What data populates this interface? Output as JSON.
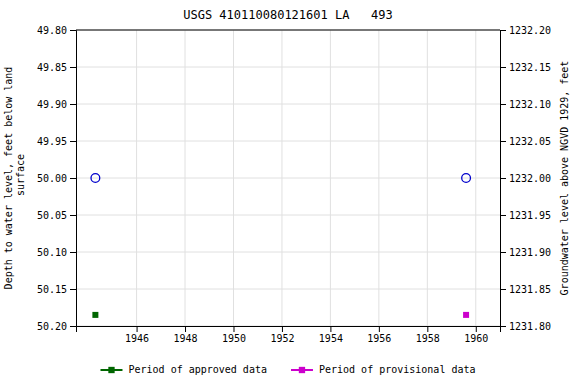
{
  "chart_data": {
    "type": "scatter",
    "title": "USGS 410110080121601 LA   493",
    "ylabel": "Depth to water level, feet below land\n surface",
    "y2label": "Groundwater level above NGVD 1929, feet",
    "xlim": [
      1943.5,
      1961.0
    ],
    "xticks": [
      1946,
      1948,
      1950,
      1952,
      1954,
      1956,
      1958,
      1960
    ],
    "ylim": [
      50.2,
      49.8
    ],
    "yticks": [
      {
        "value": 49.8,
        "label": "49.80"
      },
      {
        "value": 49.85,
        "label": "49.85"
      },
      {
        "value": 49.9,
        "label": "49.90"
      },
      {
        "value": 49.95,
        "label": "49.95"
      },
      {
        "value": 50.0,
        "label": "50.00"
      },
      {
        "value": 50.05,
        "label": "50.05"
      },
      {
        "value": 50.1,
        "label": "50.10"
      },
      {
        "value": 50.15,
        "label": "50.15"
      },
      {
        "value": 50.2,
        "label": "50.20"
      }
    ],
    "y2lim": [
      1231.8,
      1232.2
    ],
    "y2ticks": [
      {
        "value": 1232.2,
        "label": "1232.20"
      },
      {
        "value": 1232.15,
        "label": "1232.15"
      },
      {
        "value": 1232.1,
        "label": "1232.10"
      },
      {
        "value": 1232.05,
        "label": "1232.05"
      },
      {
        "value": 1232.0,
        "label": "1232.00"
      },
      {
        "value": 1231.95,
        "label": "1231.95"
      },
      {
        "value": 1231.9,
        "label": "1231.90"
      },
      {
        "value": 1231.85,
        "label": "1231.85"
      },
      {
        "value": 1231.8,
        "label": "1231.80"
      }
    ],
    "grid": true,
    "legend": "bottom",
    "series": [
      {
        "color": "#0000cc",
        "marker": "circle-open",
        "x": [
          1944.3,
          1959.6
        ],
        "values": [
          50.0,
          50.0
        ]
      },
      {
        "name": "Period of approved data",
        "color": "#006600",
        "marker": "square",
        "x": [
          1944.3
        ],
        "values": [
          50.185
        ]
      },
      {
        "name": "Period of provisional data",
        "color": "#cc00cc",
        "marker": "square",
        "x": [
          1959.6
        ],
        "values": [
          50.185
        ]
      }
    ]
  }
}
